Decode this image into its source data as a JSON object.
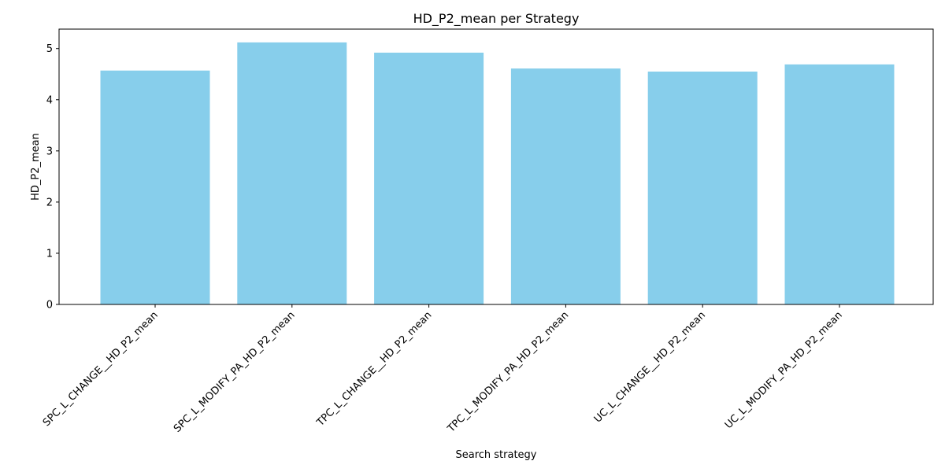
{
  "chart_data": {
    "type": "bar",
    "title": "HD_P2_mean per Strategy",
    "xlabel": "Search strategy",
    "ylabel": "HD_P2_mean",
    "categories": [
      "SPC_L_CHANGE__HD_P2_mean",
      "SPC_L_MODIFY_PA_HD_P2_mean",
      "TPC_L_CHANGE__HD_P2_mean",
      "TPC_L_MODIFY_PA_HD_P2_mean",
      "UC_L_CHANGE__HD_P2_mean",
      "UC_L_MODIFY_PA_HD_P2_mean"
    ],
    "values": [
      4.57,
      5.12,
      4.92,
      4.61,
      4.55,
      4.69
    ],
    "ylim": [
      0,
      5.38
    ],
    "yticks": [
      0,
      1,
      2,
      3,
      4,
      5
    ],
    "grid": false,
    "legend": "none",
    "bar_color": "#87CEEB"
  }
}
